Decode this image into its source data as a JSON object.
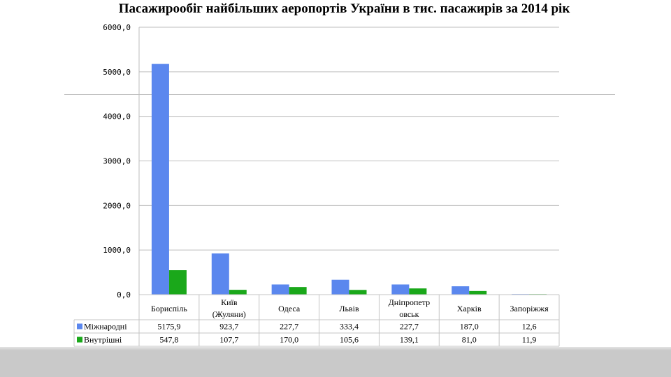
{
  "chart_data": {
    "type": "bar",
    "title": "Пасажирообіг найбільших аеропортів України в тис. пасажирів за 2014 рік",
    "categories": [
      [
        "Бориспіль"
      ],
      [
        "Київ",
        "(Жуляни)"
      ],
      [
        "Одеса"
      ],
      [
        "Львів"
      ],
      [
        "Дніпропетр",
        "овськ"
      ],
      [
        "Харків"
      ],
      [
        "Запоріжжя"
      ]
    ],
    "series": [
      {
        "name": "Міжнародні",
        "color": "#5b87ee",
        "values": [
          5175.9,
          923.7,
          227.7,
          333.4,
          227.7,
          187.0,
          12.6
        ],
        "labels": [
          "5175,9",
          "923,7",
          "227,7",
          "333,4",
          "227,7",
          "187,0",
          "12,6"
        ]
      },
      {
        "name": "Внутрішні",
        "color": "#1aa81a",
        "values": [
          547.8,
          107.7,
          170.0,
          105.6,
          139.1,
          81.0,
          11.9
        ],
        "labels": [
          "547,8",
          "107,7",
          "170,0",
          "105,6",
          "139,1",
          "81,0",
          "11,9"
        ]
      }
    ],
    "yticks": [
      0,
      1000,
      2000,
      3000,
      4000,
      5000,
      6000
    ],
    "ytick_labels": [
      "0,0",
      "1000,0",
      "2000,0",
      "3000,0",
      "4000,0",
      "5000,0",
      "6000,0"
    ],
    "ylim": [
      0,
      6000
    ],
    "grid": true,
    "legend": "data-table"
  }
}
